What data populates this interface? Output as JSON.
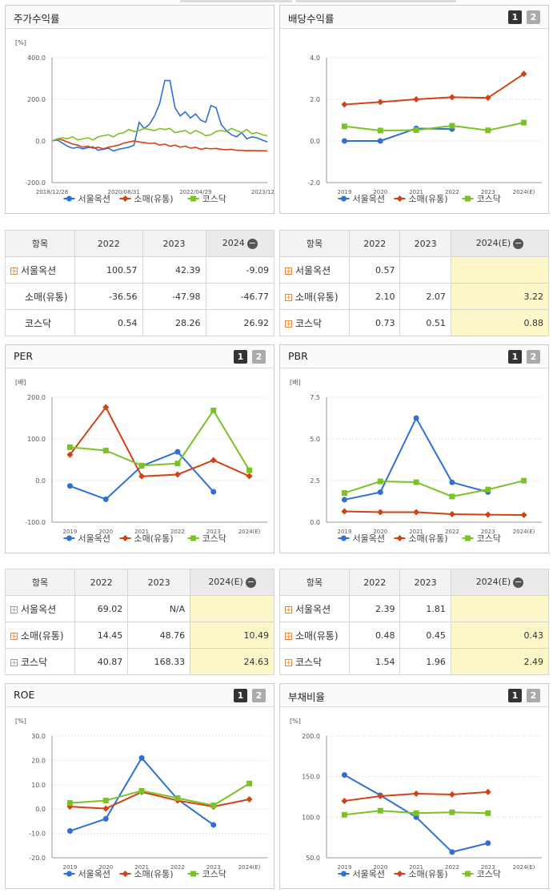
{
  "legend": [
    "서울옥션",
    "소매(유통)",
    "코스닥"
  ],
  "series_colors": [
    "#2f6fd6",
    "#d24215",
    "#7cc127"
  ],
  "buttons": [
    "1",
    "2"
  ],
  "panels": {
    "stock": {
      "title": "주가수익률"
    },
    "dividend": {
      "title": "배당수익률"
    },
    "per": {
      "title": "PER"
    },
    "pbr": {
      "title": "PBR"
    },
    "roe": {
      "title": "ROE"
    },
    "debt": {
      "title": "부채비율"
    }
  },
  "tables": {
    "stock": {
      "headers": [
        "항목",
        "2022",
        "2023",
        "2024"
      ],
      "rows": [
        {
          "name": "서울옥션",
          "plus": true,
          "values": [
            "100.57",
            "42.39",
            "-9.09"
          ]
        },
        {
          "name": "소매(유통)",
          "plus": false,
          "values": [
            "-36.56",
            "-47.98",
            "-46.77"
          ]
        },
        {
          "name": "코스닥",
          "plus": false,
          "values": [
            "0.54",
            "28.26",
            "26.92"
          ]
        }
      ]
    },
    "dividend": {
      "headers": [
        "항목",
        "2022",
        "2023",
        "2024(E)"
      ],
      "rows": [
        {
          "name": "서울옥션",
          "plus": true,
          "values": [
            "0.57",
            "",
            ""
          ]
        },
        {
          "name": "소매(유통)",
          "plus": true,
          "values": [
            "2.10",
            "2.07",
            "3.22"
          ]
        },
        {
          "name": "코스닥",
          "plus": true,
          "values": [
            "0.73",
            "0.51",
            "0.88"
          ]
        }
      ]
    },
    "per": {
      "headers": [
        "항목",
        "2022",
        "2023",
        "2024(E)"
      ],
      "rows": [
        {
          "name": "서울옥션",
          "plus": true,
          "values": [
            "69.02",
            "N/A",
            ""
          ]
        },
        {
          "name": "소매(유통)",
          "plus": true,
          "values": [
            "14.45",
            "48.76",
            "10.49"
          ]
        },
        {
          "name": "코스닥",
          "plus": true,
          "values": [
            "40.87",
            "168.33",
            "24.63"
          ]
        }
      ]
    },
    "pbr": {
      "headers": [
        "항목",
        "2022",
        "2023",
        "2024(E)"
      ],
      "rows": [
        {
          "name": "서울옥션",
          "plus": true,
          "values": [
            "2.39",
            "1.81",
            ""
          ]
        },
        {
          "name": "소매(유통)",
          "plus": true,
          "values": [
            "0.48",
            "0.45",
            "0.43"
          ]
        },
        {
          "name": "코스닥",
          "plus": true,
          "values": [
            "1.54",
            "1.96",
            "2.49"
          ]
        }
      ]
    }
  },
  "chart_data": [
    {
      "id": "stock",
      "type": "line",
      "unit": "[%]",
      "x_ticks": [
        "2018/12/28",
        "2020/08/31",
        "2022/04/29",
        "2023/12/28"
      ],
      "ylim": [
        -200,
        400
      ],
      "yticks": [
        "400.0",
        "200.0",
        "0.0",
        "-200.0"
      ],
      "ytick_values": [
        400,
        200,
        0,
        -200
      ],
      "series": [
        {
          "name": "서울옥션",
          "values": [
            0,
            5,
            -10,
            -25,
            -35,
            -30,
            -38,
            -32,
            -28,
            -45,
            -40,
            -35,
            -48,
            -40,
            -35,
            -30,
            -20,
            90,
            60,
            80,
            120,
            180,
            290,
            290,
            160,
            120,
            140,
            110,
            130,
            100,
            90,
            170,
            160,
            80,
            50,
            30,
            20,
            40,
            10,
            20,
            15,
            5,
            -5
          ]
        },
        {
          "name": "소매(유통)",
          "values": [
            0,
            10,
            5,
            -5,
            -15,
            -20,
            -30,
            -25,
            -35,
            -30,
            -38,
            -30,
            -25,
            -20,
            -10,
            -5,
            0,
            -5,
            -8,
            -12,
            -10,
            -20,
            -15,
            -25,
            -20,
            -30,
            -25,
            -35,
            -30,
            -40,
            -35,
            -38,
            -36,
            -40,
            -42,
            -40,
            -45,
            -45,
            -47,
            -46,
            -47,
            -47,
            -48
          ]
        },
        {
          "name": "코스닥",
          "values": [
            0,
            10,
            15,
            10,
            20,
            5,
            10,
            15,
            5,
            20,
            25,
            30,
            20,
            35,
            40,
            55,
            45,
            50,
            60,
            55,
            50,
            60,
            55,
            60,
            40,
            45,
            50,
            35,
            50,
            40,
            25,
            30,
            45,
            50,
            45,
            60,
            50,
            40,
            55,
            35,
            40,
            30,
            25
          ]
        }
      ]
    },
    {
      "id": "dividend",
      "type": "line",
      "unit": "",
      "categories": [
        "2019",
        "2020",
        "2021",
        "2022",
        "2023",
        "2024(E)"
      ],
      "ylim": [
        -2,
        4
      ],
      "yticks": [
        "4.0",
        "2.0",
        "0.0",
        "-2.0"
      ],
      "ytick_values": [
        4,
        2,
        0,
        -2
      ],
      "series": [
        {
          "name": "서울옥션",
          "values": [
            0.0,
            0.0,
            0.6,
            0.57,
            null,
            null
          ]
        },
        {
          "name": "소매(유통)",
          "values": [
            1.75,
            1.87,
            2.0,
            2.1,
            2.07,
            3.22
          ]
        },
        {
          "name": "코스닥",
          "values": [
            0.7,
            0.5,
            0.52,
            0.73,
            0.51,
            0.88
          ]
        }
      ]
    },
    {
      "id": "per",
      "type": "line",
      "unit": "[배]",
      "categories": [
        "2019",
        "2020",
        "2021",
        "2022",
        "2023",
        "2024(E)"
      ],
      "ylim": [
        -100,
        200
      ],
      "yticks": [
        "200.0",
        "100.0",
        "0.0",
        "-100.0"
      ],
      "ytick_values": [
        200,
        100,
        0,
        -100
      ],
      "series": [
        {
          "name": "서울옥션",
          "values": [
            -13,
            -45,
            35,
            69.02,
            -27,
            null
          ]
        },
        {
          "name": "소매(유통)",
          "values": [
            62,
            176,
            10,
            14.45,
            48.76,
            10.49
          ]
        },
        {
          "name": "코스닥",
          "values": [
            80,
            72,
            36,
            40.87,
            168.33,
            24.63
          ]
        }
      ]
    },
    {
      "id": "pbr",
      "type": "line",
      "unit": "[배]",
      "categories": [
        "2019",
        "2020",
        "2021",
        "2022",
        "2023",
        "2024(E)"
      ],
      "ylim": [
        0,
        7.5
      ],
      "yticks": [
        "7.5",
        "5.0",
        "2.5",
        "0.0"
      ],
      "ytick_values": [
        7.5,
        5,
        2.5,
        0
      ],
      "series": [
        {
          "name": "서울옥션",
          "values": [
            1.35,
            1.8,
            6.25,
            2.39,
            1.81,
            null
          ]
        },
        {
          "name": "소매(유통)",
          "values": [
            0.65,
            0.6,
            0.6,
            0.48,
            0.45,
            0.43
          ]
        },
        {
          "name": "코스닥",
          "values": [
            1.75,
            2.45,
            2.4,
            1.54,
            1.96,
            2.49
          ]
        }
      ]
    },
    {
      "id": "roe",
      "type": "line",
      "unit": "[%]",
      "categories": [
        "2019",
        "2020",
        "2021",
        "2022",
        "2023",
        "2024(E)"
      ],
      "ylim": [
        -20,
        30
      ],
      "yticks": [
        "30.0",
        "20.0",
        "10.0",
        "0.0",
        "-10.0",
        "-20.0"
      ],
      "ytick_values": [
        30,
        20,
        10,
        0,
        -10,
        -20
      ],
      "series": [
        {
          "name": "서울옥션",
          "values": [
            -9,
            -4,
            21,
            4,
            -6.5,
            null
          ]
        },
        {
          "name": "소매(유통)",
          "values": [
            1,
            0.2,
            7,
            3.5,
            1,
            4
          ]
        },
        {
          "name": "코스닥",
          "values": [
            2.5,
            3.5,
            7.5,
            4.5,
            1.5,
            10.5
          ]
        }
      ]
    },
    {
      "id": "debt",
      "type": "line",
      "unit": "[%]",
      "categories": [
        "2019",
        "2020",
        "2021",
        "2022",
        "2023",
        "2024(E)"
      ],
      "ylim": [
        50,
        200
      ],
      "yticks": [
        "200.0",
        "150.0",
        "100.0",
        "50.0"
      ],
      "ytick_values": [
        200,
        150,
        100,
        50
      ],
      "series": [
        {
          "name": "서울옥션",
          "values": [
            152,
            127,
            100,
            57,
            68,
            null
          ]
        },
        {
          "name": "소매(유통)",
          "values": [
            120,
            126,
            129,
            128,
            131,
            null
          ]
        },
        {
          "name": "코스닥",
          "values": [
            103,
            108,
            105,
            106,
            105,
            null
          ]
        }
      ]
    }
  ]
}
